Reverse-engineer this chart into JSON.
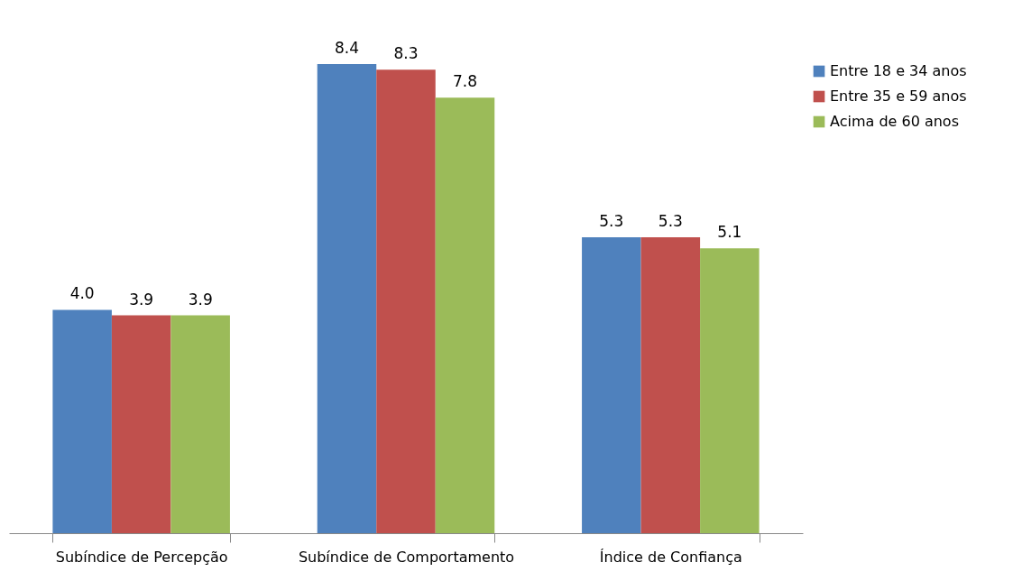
{
  "chart_data": {
    "type": "bar",
    "categories": [
      "Subíndice de Percepção",
      "Subíndice de Comportamento",
      "Índice de Confiança"
    ],
    "series": [
      {
        "name": "Entre 18 e 34 anos",
        "color": "#4f81bd",
        "values": [
          4.0,
          8.4,
          5.3
        ],
        "value_labels": [
          "4.0",
          "8.4",
          "5.3"
        ]
      },
      {
        "name": "Entre 35 e 59 anos",
        "color": "#c0504d",
        "values": [
          3.9,
          8.3,
          5.3
        ],
        "value_labels": [
          "3.9",
          "8.3",
          "5.3"
        ]
      },
      {
        "name": "Acima de 60 anos",
        "color": "#9bbb59",
        "values": [
          3.9,
          7.8,
          5.1
        ],
        "value_labels": [
          "3.9",
          "7.8",
          "5.1"
        ]
      }
    ],
    "legend": "right"
  }
}
